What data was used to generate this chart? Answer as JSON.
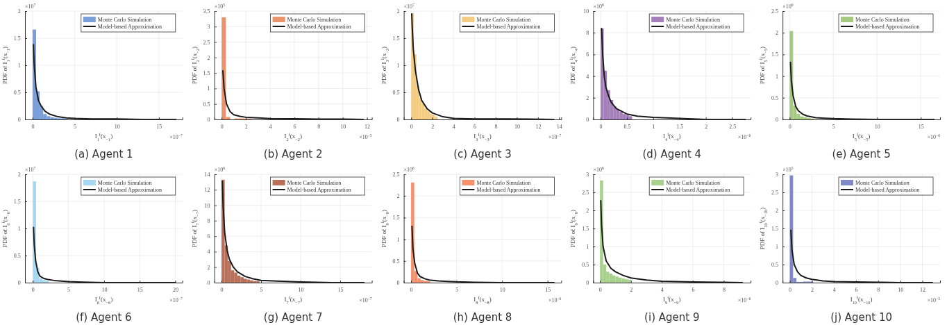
{
  "chart_data": [
    {
      "type": "histogram",
      "title": "(a) Agent 1",
      "xlabel": "I$_{1}$$^{f}$(x$_{−1}$)",
      "ylabel": "PDF of I$_{1}$$^{f}$(x$_{−1}$)",
      "annotations": [
        "×10$^{7}$",
        "×10$^{−7}$"
      ],
      "xlim": [
        -0.9,
        17.8
      ],
      "xticks": [
        0,
        5,
        10,
        15
      ],
      "ylim": [
        0,
        2
      ],
      "yticks": [
        0,
        0.5,
        1,
        1.5,
        2
      ],
      "grid": true,
      "legend": "top right",
      "bins": [
        0,
        0.42,
        0.84,
        1.26,
        1.68,
        2.1,
        2.52,
        2.94,
        3.36,
        3.78,
        4.2
      ],
      "series": [
        {
          "name": "Monte Carlo Simulation",
          "type": "histogram",
          "color": "#7b9fd8",
          "values": [
            1.66,
            0.52,
            0.25,
            0.1,
            0.06,
            0.04,
            0.03,
            0.02,
            0.02,
            0.01
          ]
        },
        {
          "name": "Model-based Approximation",
          "type": "line",
          "color": "#1a1a1a",
          "x": [
            0.1,
            0.2,
            0.4,
            0.7,
            1,
            1.5,
            2,
            3,
            4,
            5,
            7,
            10,
            13,
            17
          ],
          "values": [
            1.38,
            1.0,
            0.6,
            0.35,
            0.25,
            0.15,
            0.1,
            0.05,
            0.03,
            0.02,
            0.01,
            0.01,
            0,
            0
          ]
        }
      ]
    },
    {
      "type": "histogram",
      "title": "(b) Agent 2",
      "xlabel": "I$_{2}$$^{f}$(x$_{−2}$)",
      "ylabel": "PDF of I$_{2}$$^{f}$(x$_{−2}$)",
      "annotations": [
        "×10$^{5}$",
        "×10$^{−5}$"
      ],
      "xlim": [
        -0.6,
        12.4
      ],
      "xticks": [
        0,
        2,
        4,
        6,
        8,
        10,
        12
      ],
      "ylim": [
        0,
        3.5
      ],
      "yticks": [
        0,
        0.5,
        1,
        1.5,
        2,
        2.5,
        3,
        3.5
      ],
      "grid": true,
      "legend": "top right",
      "bins": [
        0,
        0.35,
        0.7,
        1.05,
        1.4,
        1.75,
        2.1,
        2.45
      ],
      "series": [
        {
          "name": "Monte Carlo Simulation",
          "type": "histogram",
          "color": "#e9946a",
          "values": [
            3.3,
            0.08,
            0,
            0.03,
            0.03,
            0.03,
            0.02
          ]
        },
        {
          "name": "Model-based Approximation",
          "type": "line",
          "color": "#1a1a1a",
          "x": [
            0.1,
            0.2,
            0.4,
            0.7,
            1,
            1.5,
            2,
            3,
            4,
            6,
            8,
            10,
            11.7
          ],
          "values": [
            1.57,
            1.0,
            0.5,
            0.25,
            0.15,
            0.1,
            0.07,
            0.05,
            0.03,
            0.02,
            0.01,
            0.01,
            0
          ]
        }
      ]
    },
    {
      "type": "histogram",
      "title": "(c) Agent 3",
      "xlabel": "I$_{3}$$^{f}$(x$_{−3}$)",
      "ylabel": "PDF of I$_{3}$$^{f}$(x$_{−3}$)",
      "annotations": [
        "×10$^{7}$",
        "×10$^{−7}$"
      ],
      "xlim": [
        -0.7,
        14.2
      ],
      "xticks": [
        0,
        2,
        4,
        6,
        8,
        10,
        12,
        14
      ],
      "ylim": [
        0,
        2
      ],
      "yticks": [
        0,
        0.5,
        1,
        1.5,
        2
      ],
      "grid": true,
      "legend": "top right",
      "bins": [
        0,
        0.25,
        0.5,
        0.75,
        1,
        1.25,
        1.5,
        1.75,
        2,
        2.25,
        2.5
      ],
      "series": [
        {
          "name": "Monte Carlo Simulation",
          "type": "histogram",
          "color": "#f2cc82",
          "values": [
            1.96,
            1.2,
            0.62,
            0.4,
            0.3,
            0.2,
            0.15,
            0.1,
            0.08,
            0.05
          ]
        },
        {
          "name": "Model-based Approximation",
          "type": "line",
          "color": "#1a1a1a",
          "x": [
            0.05,
            0.1,
            0.2,
            0.4,
            0.7,
            1,
            1.5,
            2,
            3,
            4,
            6,
            9,
            13.5
          ],
          "values": [
            1.95,
            1.7,
            1.3,
            0.9,
            0.55,
            0.35,
            0.2,
            0.12,
            0.05,
            0.02,
            0.01,
            0.01,
            0
          ]
        }
      ]
    },
    {
      "type": "histogram",
      "title": "(d) Agent 4",
      "xlabel": "I$_{4}$$^{f}$(x$_{−4}$)",
      "ylabel": "PDF of I$_{4}$$^{f}$(x$_{−4}$)",
      "annotations": [
        "×10$^{6}$",
        "×10$^{−6}$"
      ],
      "xlim": [
        -0.14,
        2.85
      ],
      "xticks": [
        0,
        0.5,
        1,
        1.5,
        2,
        2.5
      ],
      "ylim": [
        0,
        10
      ],
      "yticks": [
        0,
        2,
        4,
        6,
        8,
        10
      ],
      "grid": true,
      "legend": "top right",
      "bins": [
        0,
        0.06,
        0.12,
        0.18,
        0.24,
        0.3,
        0.36,
        0.42,
        0.48,
        0.54,
        0.6
      ],
      "series": [
        {
          "name": "Monte Carlo Simulation",
          "type": "histogram",
          "color": "#a57fba",
          "values": [
            8.4,
            4.5,
            2.7,
            1.8,
            1.2,
            0.9,
            0.7,
            0.5,
            0.4,
            0.3
          ]
        },
        {
          "name": "Model-based Approximation",
          "type": "line",
          "color": "#1a1a1a",
          "x": [
            0.02,
            0.04,
            0.07,
            0.1,
            0.15,
            0.2,
            0.3,
            0.5,
            0.7,
            1,
            1.5,
            2,
            2.75
          ],
          "values": [
            8.4,
            6,
            4,
            3,
            2.2,
            1.6,
            1,
            0.5,
            0.3,
            0.2,
            0.1,
            0,
            0
          ]
        }
      ]
    },
    {
      "type": "histogram",
      "title": "(e) Agent 5",
      "xlabel": "I$_{5}$$^{f}$(x$_{−5}$)",
      "ylabel": "PDF of I$_{5}$$^{f}$(x$_{−5}$)",
      "annotations": [
        "×10$^{6}$",
        "×10$^{−6}$"
      ],
      "xlim": [
        -0.8,
        17.2
      ],
      "xticks": [
        0,
        5,
        10,
        15
      ],
      "ylim": [
        0,
        2.5
      ],
      "yticks": [
        0,
        0.5,
        1,
        1.5,
        2,
        2.5
      ],
      "grid": true,
      "legend": "top right",
      "bins": [
        0,
        0.4,
        0.8,
        1.2,
        1.6,
        2,
        2.4,
        2.8
      ],
      "series": [
        {
          "name": "Monte Carlo Simulation",
          "type": "histogram",
          "color": "#a5c882",
          "values": [
            2.04,
            0.32,
            0.13,
            0.07,
            0.05,
            0.03,
            0.02
          ]
        },
        {
          "name": "Model-based Approximation",
          "type": "line",
          "color": "#1a1a1a",
          "x": [
            0.1,
            0.2,
            0.4,
            0.7,
            1,
            1.5,
            2,
            3,
            4,
            5,
            7,
            10,
            16.5
          ],
          "values": [
            1.32,
            0.9,
            0.55,
            0.3,
            0.2,
            0.12,
            0.08,
            0.04,
            0.03,
            0.02,
            0.01,
            0,
            0
          ]
        }
      ]
    },
    {
      "type": "histogram",
      "title": "(f) Agent 6",
      "xlabel": "I$_{6}$$^{f}$(x$_{−6}$)",
      "ylabel": "PDF of I$_{6}$$^{f}$(x$_{−6}$)",
      "annotations": [
        "×10$^{7}$",
        "×10$^{−7}$"
      ],
      "xlim": [
        -1.1,
        21
      ],
      "xticks": [
        0,
        5,
        10,
        15,
        20
      ],
      "ylim": [
        0,
        2
      ],
      "yticks": [
        0,
        0.5,
        1,
        1.5,
        2
      ],
      "grid": true,
      "legend": "top right",
      "bins": [
        0,
        0.45,
        0.9,
        1.35,
        1.8,
        2.25
      ],
      "series": [
        {
          "name": "Monte Carlo Simulation",
          "type": "histogram",
          "color": "#a7d8f2",
          "values": [
            1.87,
            0.27,
            0.08,
            0.05,
            0.03
          ]
        },
        {
          "name": "Model-based Approximation",
          "type": "line",
          "color": "#1a1a1a",
          "x": [
            0.1,
            0.2,
            0.4,
            0.7,
            1,
            1.5,
            2,
            3,
            4,
            5,
            7,
            10,
            15,
            20
          ],
          "values": [
            1.02,
            0.7,
            0.4,
            0.2,
            0.12,
            0.08,
            0.06,
            0.04,
            0.03,
            0.02,
            0.01,
            0,
            0,
            0
          ]
        }
      ]
    },
    {
      "type": "histogram",
      "title": "(g) Agent 7",
      "xlabel": "I$_{7}$$^{f}$(x$_{−7}$)",
      "ylabel": "PDF of I$_{7}$$^{f}$(x$_{−7}$)",
      "annotations": [
        "×10$^{6}$",
        "×10$^{−7}$"
      ],
      "xlim": [
        -0.9,
        19
      ],
      "xticks": [
        0,
        5,
        10,
        15
      ],
      "ylim": [
        0,
        14
      ],
      "yticks": [
        0,
        2,
        4,
        6,
        8,
        10,
        12,
        14
      ],
      "grid": true,
      "legend": "top right",
      "bins": [
        0,
        0.4,
        0.8,
        1.2,
        1.6,
        2,
        2.4,
        2.8,
        3.2,
        3.6,
        4,
        4.4,
        4.8
      ],
      "series": [
        {
          "name": "Monte Carlo Simulation",
          "type": "histogram",
          "color": "#b8705a",
          "values": [
            13.3,
            4.8,
            2.8,
            1.6,
            1.3,
            0.9,
            0.7,
            0.5,
            0.4,
            0.3,
            0.2,
            0.2
          ]
        },
        {
          "name": "Model-based Approximation",
          "type": "line",
          "color": "#1a1a1a",
          "x": [
            0.1,
            0.2,
            0.4,
            0.7,
            1,
            1.5,
            2,
            3,
            4,
            5,
            7,
            10,
            14,
            18
          ],
          "values": [
            13.1,
            10,
            6.5,
            4.2,
            3,
            2,
            1.4,
            0.8,
            0.5,
            0.3,
            0.2,
            0.1,
            0,
            0
          ]
        }
      ]
    },
    {
      "type": "histogram",
      "title": "(h) Agent 8",
      "xlabel": "I$_{8}$$^{f}$(x$_{−8}$)",
      "ylabel": "PDF of I$_{8}$$^{f}$(x$_{−8}$)",
      "annotations": [
        "×10$^{6}$",
        "×10$^{−6}$"
      ],
      "xlim": [
        -0.8,
        16.5
      ],
      "xticks": [
        0,
        5,
        10,
        15
      ],
      "ylim": [
        0,
        2.5
      ],
      "yticks": [
        0,
        0.5,
        1,
        1.5,
        2,
        2.5
      ],
      "grid": true,
      "legend": "top right",
      "bins": [
        0,
        0.35,
        0.7,
        1.05,
        1.4,
        1.75,
        2.1
      ],
      "series": [
        {
          "name": "Monte Carlo Simulation",
          "type": "histogram",
          "color": "#f5916c",
          "values": [
            2.31,
            0.27,
            0.1,
            0.06,
            0.04,
            0.03
          ]
        },
        {
          "name": "Model-based Approximation",
          "type": "line",
          "color": "#1a1a1a",
          "x": [
            0.1,
            0.2,
            0.4,
            0.7,
            1,
            1.5,
            2,
            3,
            4,
            5,
            7,
            10,
            15.7
          ],
          "values": [
            1.3,
            0.8,
            0.45,
            0.22,
            0.14,
            0.09,
            0.06,
            0.04,
            0.03,
            0.02,
            0.01,
            0,
            0
          ]
        }
      ]
    },
    {
      "type": "histogram",
      "title": "(i) Agent 9",
      "xlabel": "I$_{9}$$^{f}$(x$_{−9}$)",
      "ylabel": "PDF of I$_{9}$$^{f}$(x$_{−9}$)",
      "annotations": [
        "×10$^{6}$",
        "×10$^{−6}$"
      ],
      "xlim": [
        -0.44,
        9.74
      ],
      "xticks": [
        0,
        2,
        4,
        6,
        8
      ],
      "ylim": [
        0,
        3
      ],
      "yticks": [
        0,
        0.5,
        1,
        1.5,
        2,
        2.5,
        3
      ],
      "grid": true,
      "legend": "top right",
      "bins": [
        0,
        0.2,
        0.4,
        0.6,
        0.8,
        1,
        1.2,
        1.4,
        1.6,
        1.8,
        2
      ],
      "series": [
        {
          "name": "Monte Carlo Simulation",
          "type": "histogram",
          "color": "#a9d18e",
          "values": [
            2.83,
            0.5,
            0.3,
            0.25,
            0.2,
            0.17,
            0.14,
            0.12,
            0.1,
            0.08
          ]
        },
        {
          "name": "Model-based Approximation",
          "type": "line",
          "color": "#1a1a1a",
          "x": [
            0.05,
            0.1,
            0.2,
            0.4,
            0.7,
            1,
            1.5,
            2,
            3,
            4,
            5,
            6,
            8,
            9.2
          ],
          "values": [
            2.27,
            1.6,
            1.0,
            0.6,
            0.4,
            0.3,
            0.2,
            0.13,
            0.07,
            0.04,
            0.03,
            0.02,
            0.01,
            0
          ]
        }
      ]
    },
    {
      "type": "histogram",
      "title": "(j) Agent 10",
      "xlabel": "I$_{10}$$^{f}$(x$_{−10}$)",
      "ylabel": "PDF of I$_{10}$$^{f}$(x$_{−10}$)",
      "annotations": [
        "×10$^{5}$",
        "×10$^{−5}$"
      ],
      "xlim": [
        -0.65,
        13.6
      ],
      "xticks": [
        0,
        2,
        4,
        6,
        8,
        10,
        12
      ],
      "ylim": [
        0,
        3
      ],
      "yticks": [
        0,
        0.5,
        1,
        1.5,
        2,
        2.5,
        3
      ],
      "grid": true,
      "legend": "top right",
      "bins": [
        0,
        0.3,
        0.6,
        0.9,
        1.2,
        1.5,
        1.8,
        2.1
      ],
      "series": [
        {
          "name": "Monte Carlo Simulation",
          "type": "histogram",
          "color": "#8088c8",
          "values": [
            2.97,
            0.13,
            0.02,
            0.02,
            0.03,
            0.03,
            0.03
          ]
        },
        {
          "name": "Model-based Approximation",
          "type": "line",
          "color": "#1a1a1a",
          "x": [
            0.1,
            0.2,
            0.4,
            0.7,
            1,
            1.5,
            2,
            3,
            4,
            6,
            8,
            10,
            12.9
          ],
          "values": [
            1.45,
            0.9,
            0.5,
            0.3,
            0.2,
            0.13,
            0.09,
            0.05,
            0.03,
            0.02,
            0.01,
            0,
            0
          ]
        }
      ]
    }
  ]
}
